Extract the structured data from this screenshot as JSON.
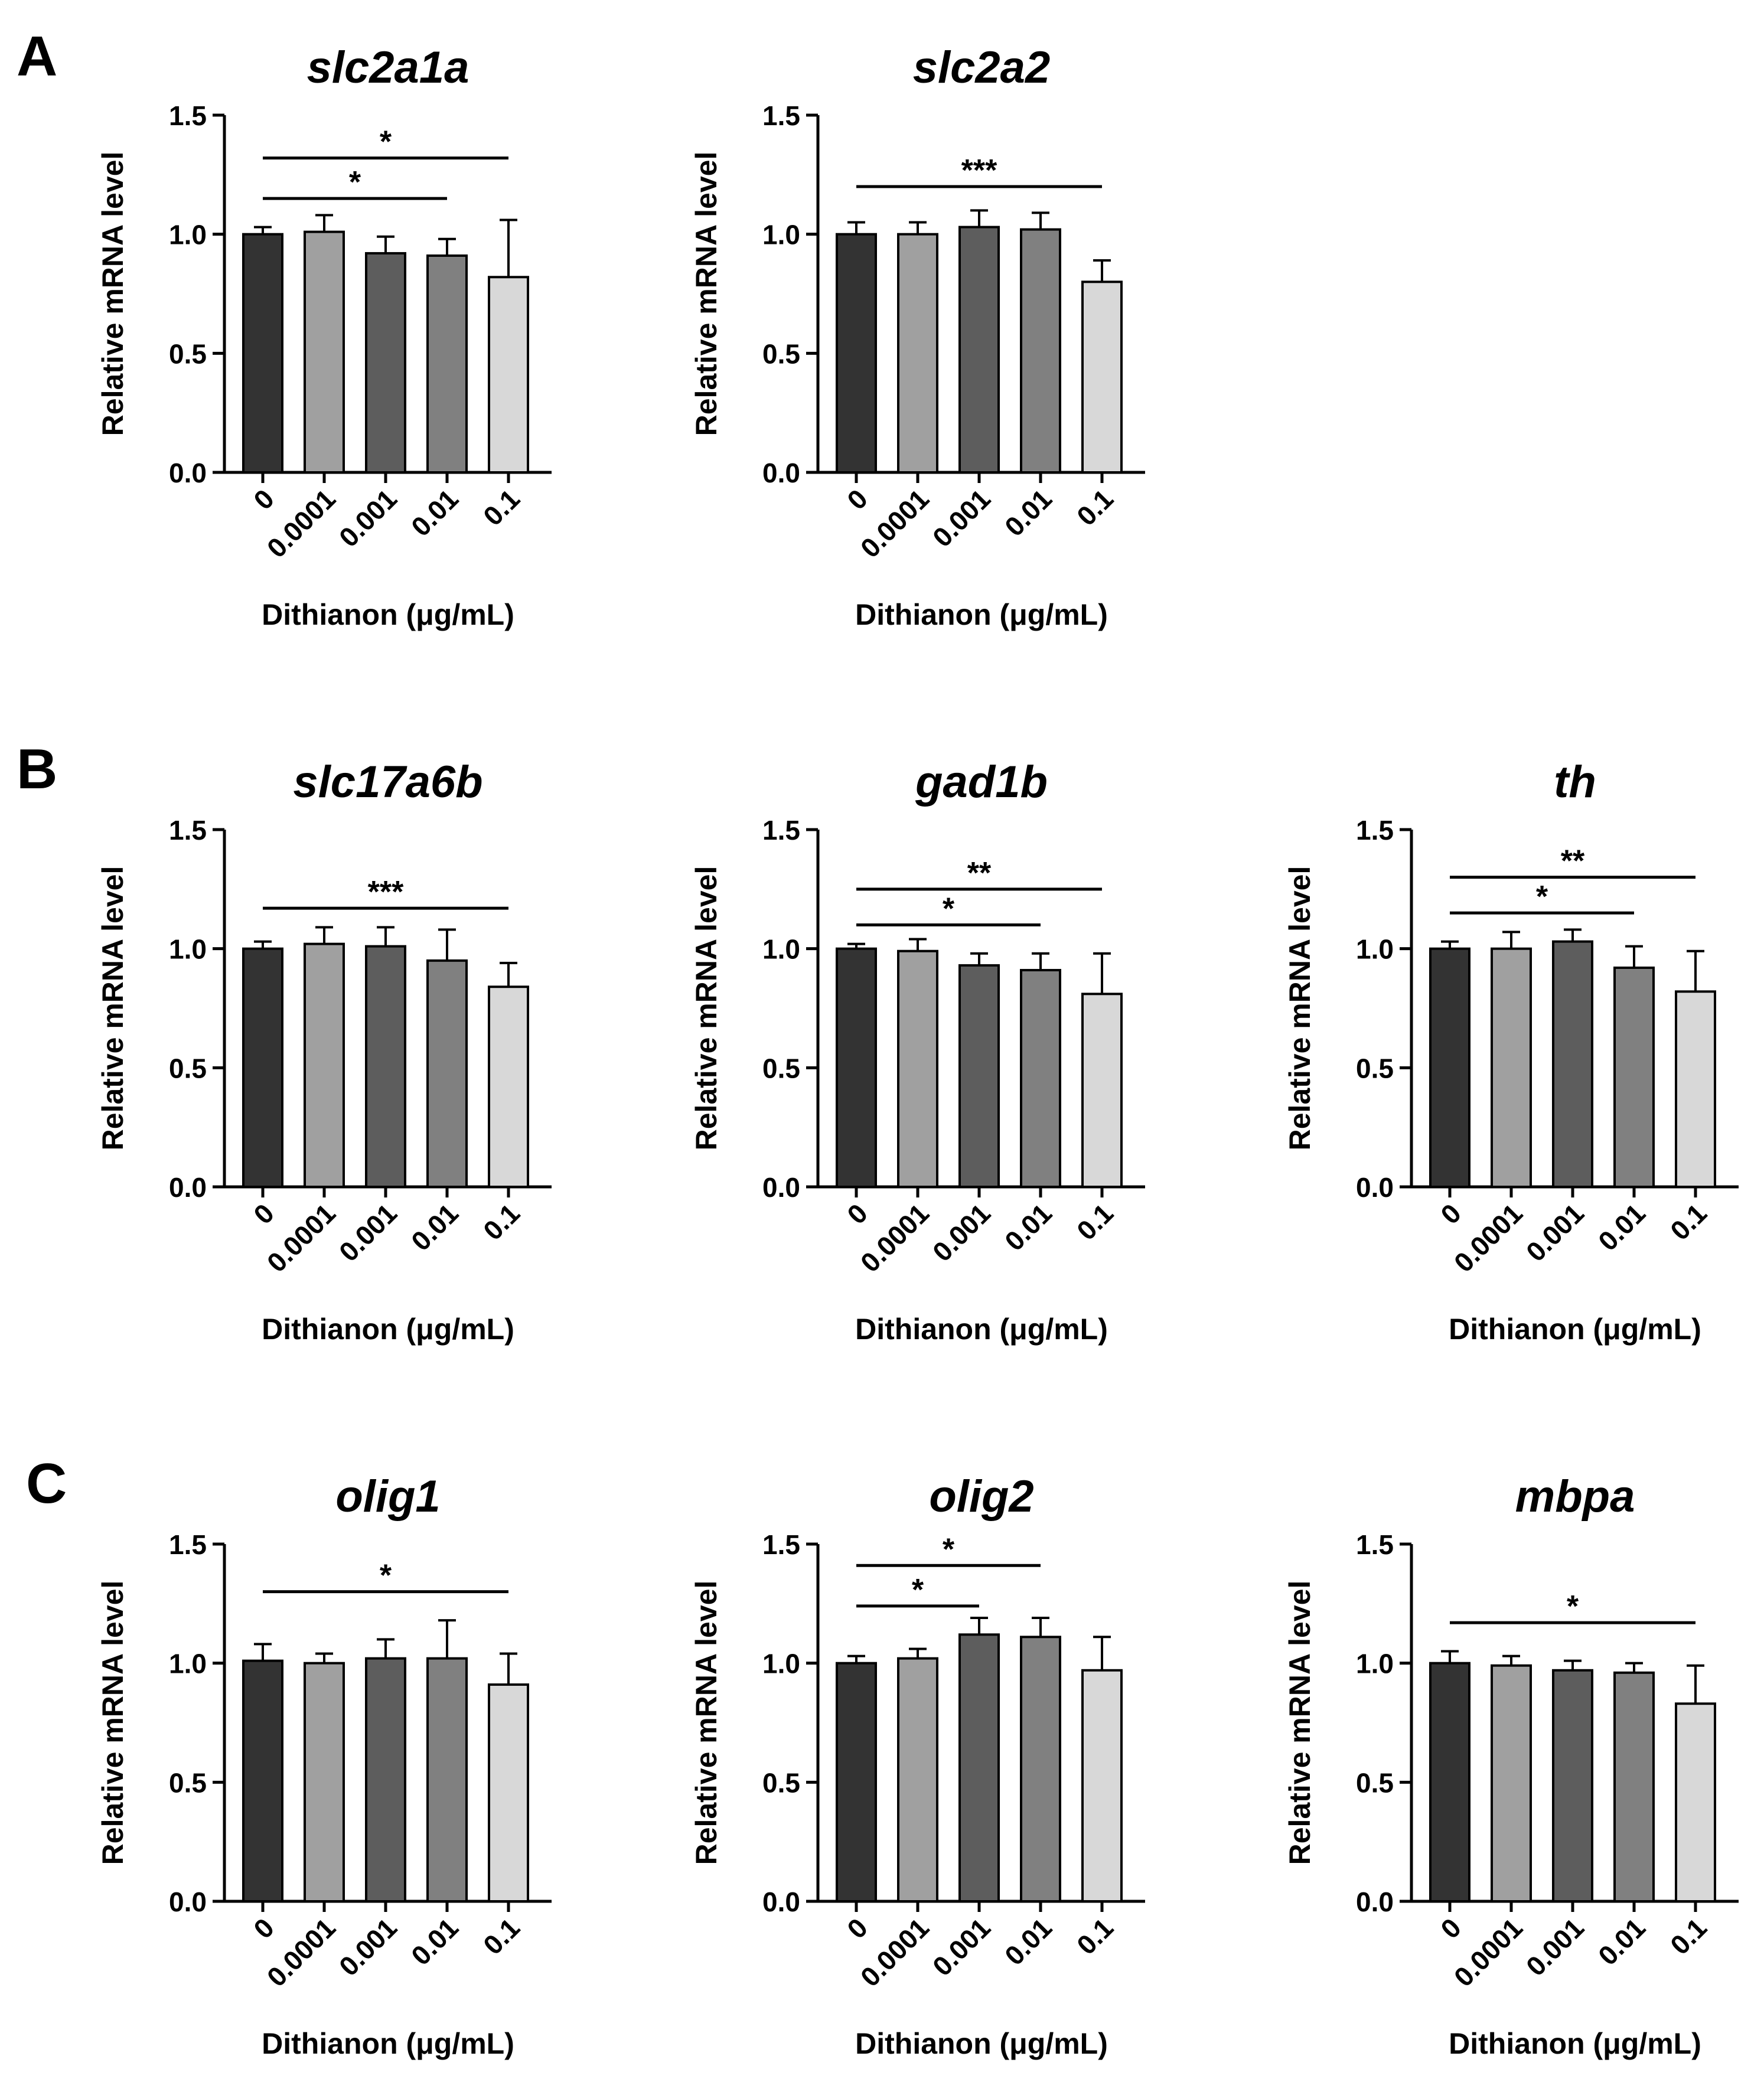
{
  "panel_labels": [
    "A",
    "B",
    "C"
  ],
  "colors": [
    "#333333",
    "#a0a0a0",
    "#5d5d5d",
    "#808080",
    "#d8d8d8"
  ],
  "chart_data": [
    {
      "type": "bar",
      "panel": "A",
      "title": "slc2a1a",
      "categories": [
        "0",
        "0.0001",
        "0.001",
        "0.01",
        "0.1"
      ],
      "values": [
        1.0,
        1.01,
        0.92,
        0.91,
        0.82
      ],
      "errors": [
        0.03,
        0.07,
        0.07,
        0.07,
        0.24
      ],
      "ylim": [
        0,
        1.5
      ],
      "yticks": [
        "0.0",
        "0.5",
        "1.0",
        "1.5"
      ],
      "ylabel": "Relative mRNA level",
      "xlabel": "Dithianon (μg/mL)",
      "significance": [
        {
          "from": 0,
          "to": 4,
          "label": "*",
          "y": 1.32
        },
        {
          "from": 0,
          "to": 3,
          "label": "*",
          "y": 1.15
        }
      ]
    },
    {
      "type": "bar",
      "panel": "A",
      "title": "slc2a2",
      "categories": [
        "0",
        "0.0001",
        "0.001",
        "0.01",
        "0.1"
      ],
      "values": [
        1.0,
        1.0,
        1.03,
        1.02,
        0.8
      ],
      "errors": [
        0.05,
        0.05,
        0.07,
        0.07,
        0.09
      ],
      "ylim": [
        0,
        1.5
      ],
      "yticks": [
        "0.0",
        "0.5",
        "1.0",
        "1.5"
      ],
      "ylabel": "Relative mRNA level",
      "xlabel": "Dithianon (μg/mL)",
      "significance": [
        {
          "from": 0,
          "to": 4,
          "label": "***",
          "y": 1.2
        }
      ]
    },
    {
      "type": "bar",
      "panel": "B",
      "title": "slc17a6b",
      "categories": [
        "0",
        "0.0001",
        "0.001",
        "0.01",
        "0.1"
      ],
      "values": [
        1.0,
        1.02,
        1.01,
        0.95,
        0.84
      ],
      "errors": [
        0.03,
        0.07,
        0.08,
        0.13,
        0.1
      ],
      "ylim": [
        0,
        1.5
      ],
      "yticks": [
        "0.0",
        "0.5",
        "1.0",
        "1.5"
      ],
      "ylabel": "Relative mRNA level",
      "xlabel": "Dithianon (μg/mL)",
      "significance": [
        {
          "from": 0,
          "to": 4,
          "label": "***",
          "y": 1.17
        }
      ]
    },
    {
      "type": "bar",
      "panel": "B",
      "title": "gad1b",
      "categories": [
        "0",
        "0.0001",
        "0.001",
        "0.01",
        "0.1"
      ],
      "values": [
        1.0,
        0.99,
        0.93,
        0.91,
        0.81
      ],
      "errors": [
        0.02,
        0.05,
        0.05,
        0.07,
        0.17
      ],
      "ylim": [
        0,
        1.5
      ],
      "yticks": [
        "0.0",
        "0.5",
        "1.0",
        "1.5"
      ],
      "ylabel": "Relative mRNA level",
      "xlabel": "Dithianon (μg/mL)",
      "significance": [
        {
          "from": 0,
          "to": 4,
          "label": "**",
          "y": 1.25
        },
        {
          "from": 0,
          "to": 3,
          "label": "*",
          "y": 1.1
        }
      ]
    },
    {
      "type": "bar",
      "panel": "B",
      "title": "th",
      "categories": [
        "0",
        "0.0001",
        "0.001",
        "0.01",
        "0.1"
      ],
      "values": [
        1.0,
        1.0,
        1.03,
        0.92,
        0.82
      ],
      "errors": [
        0.03,
        0.07,
        0.05,
        0.09,
        0.17
      ],
      "ylim": [
        0,
        1.5
      ],
      "yticks": [
        "0.0",
        "0.5",
        "1.0",
        "1.5"
      ],
      "ylabel": "Relative mRNA level",
      "xlabel": "Dithianon (μg/mL)",
      "significance": [
        {
          "from": 0,
          "to": 4,
          "label": "**",
          "y": 1.3
        },
        {
          "from": 0,
          "to": 3,
          "label": "*",
          "y": 1.15
        }
      ]
    },
    {
      "type": "bar",
      "panel": "C",
      "title": "olig1",
      "categories": [
        "0",
        "0.0001",
        "0.001",
        "0.01",
        "0.1"
      ],
      "values": [
        1.01,
        1.0,
        1.02,
        1.02,
        0.91
      ],
      "errors": [
        0.07,
        0.04,
        0.08,
        0.16,
        0.13
      ],
      "ylim": [
        0,
        1.5
      ],
      "yticks": [
        "0.0",
        "0.5",
        "1.0",
        "1.5"
      ],
      "ylabel": "Relative mRNA level",
      "xlabel": "Dithianon (μg/mL)",
      "significance": [
        {
          "from": 0,
          "to": 4,
          "label": "*",
          "y": 1.3
        }
      ]
    },
    {
      "type": "bar",
      "panel": "C",
      "title": "olig2",
      "categories": [
        "0",
        "0.0001",
        "0.001",
        "0.01",
        "0.1"
      ],
      "values": [
        1.0,
        1.02,
        1.12,
        1.11,
        0.97
      ],
      "errors": [
        0.03,
        0.04,
        0.07,
        0.08,
        0.14
      ],
      "ylim": [
        0,
        1.5
      ],
      "yticks": [
        "0.0",
        "0.5",
        "1.0",
        "1.5"
      ],
      "ylabel": "Relative mRNA level",
      "xlabel": "Dithianon (μg/mL)",
      "significance": [
        {
          "from": 0,
          "to": 3,
          "label": "*",
          "y": 1.41
        },
        {
          "from": 0,
          "to": 2,
          "label": "*",
          "y": 1.24
        }
      ]
    },
    {
      "type": "bar",
      "panel": "C",
      "title": "mbpa",
      "categories": [
        "0",
        "0.0001",
        "0.001",
        "0.01",
        "0.1"
      ],
      "values": [
        1.0,
        0.99,
        0.97,
        0.96,
        0.83
      ],
      "errors": [
        0.05,
        0.04,
        0.04,
        0.04,
        0.16
      ],
      "ylim": [
        0,
        1.5
      ],
      "yticks": [
        "0.0",
        "0.5",
        "1.0",
        "1.5"
      ],
      "ylabel": "Relative mRNA level",
      "xlabel": "Dithianon (μg/mL)",
      "significance": [
        {
          "from": 0,
          "to": 4,
          "label": "*",
          "y": 1.17
        }
      ]
    }
  ]
}
